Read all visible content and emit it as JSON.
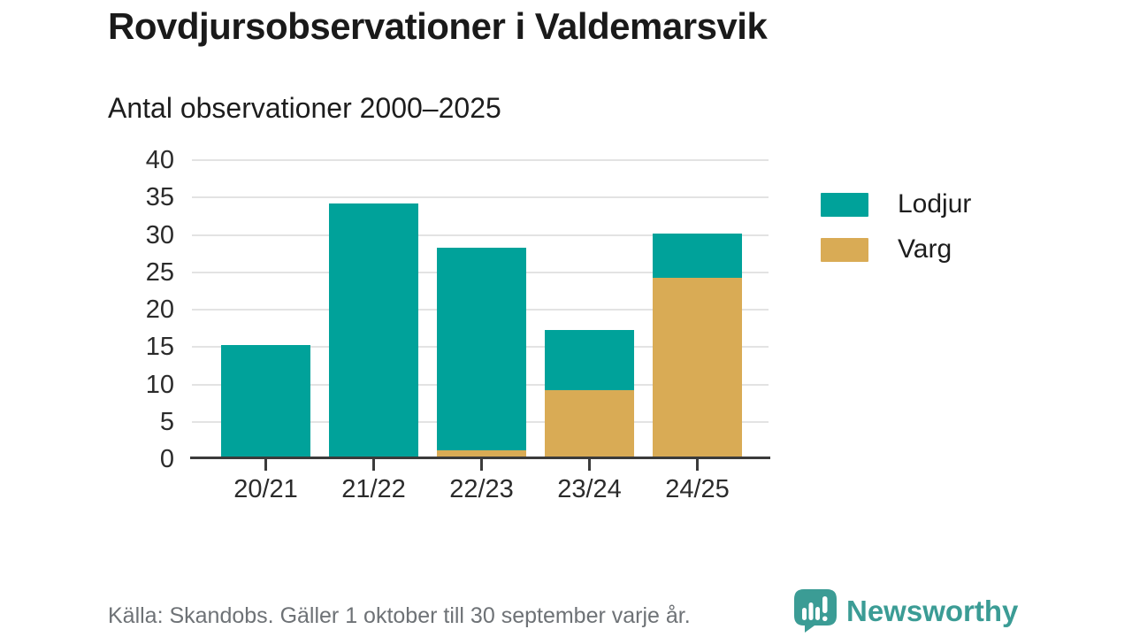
{
  "header": {
    "title": "Rovdjursobservationer i Valdemarsvik",
    "subtitle": "Antal observationer 2000–2025"
  },
  "chart_data": {
    "type": "bar",
    "stacked": true,
    "title": "Rovdjursobservationer i Valdemarsvik",
    "subtitle": "Antal observationer 2000–2025",
    "categories": [
      "20/21",
      "21/22",
      "22/23",
      "23/24",
      "24/25"
    ],
    "series": [
      {
        "name": "Varg",
        "color": "#d9ab55",
        "values": [
          0,
          0,
          1,
          9,
          24
        ]
      },
      {
        "name": "Lodjur",
        "color": "#00a29a",
        "values": [
          15,
          34,
          27,
          8,
          6
        ]
      }
    ],
    "totals": [
      15,
      34,
      28,
      17,
      30
    ],
    "xlabel": "",
    "ylabel": "",
    "ylim": [
      0,
      40
    ],
    "ytick_step": 5,
    "grid": true,
    "legend_position": "right"
  },
  "legend": {
    "items": [
      {
        "label": "Lodjur",
        "color": "#00a29a"
      },
      {
        "label": "Varg",
        "color": "#d9ab55"
      }
    ]
  },
  "footer": {
    "source": "Källa: Skandobs. Gäller 1 oktober till 30 september varje år.",
    "brand_name": "Newsworthy",
    "brand_icon": "newsworthy-speech-bubble-chart-icon"
  },
  "colors": {
    "lodjur": "#00a29a",
    "varg": "#d9ab55",
    "brand_teal": "#3b9c95",
    "axis": "#3b3b3b",
    "gridline": "#e3e3e3",
    "title_text": "#1a1a1a",
    "muted_text": "#6e7276",
    "background": "#ffffff"
  }
}
